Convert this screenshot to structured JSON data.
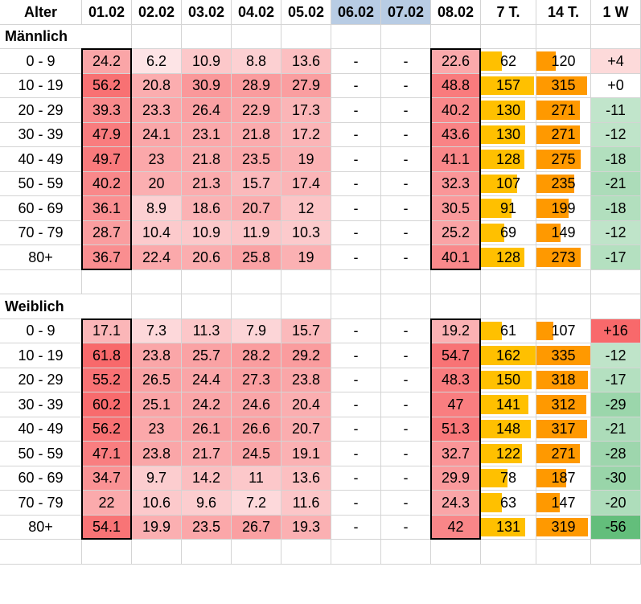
{
  "headers": [
    "Alter",
    "01.02",
    "02.02",
    "03.02",
    "04.02",
    "05.02",
    "06.02",
    "07.02",
    "08.02",
    "7 T.",
    "14 T.",
    "1 W"
  ],
  "weekend_headers": [
    "06.02",
    "07.02"
  ],
  "male": {
    "title": "Männlich",
    "rows": [
      {
        "age": "0 - 9",
        "days": [
          "24.2",
          "6.2",
          "10.9",
          "8.8",
          "13.6",
          "-",
          "-",
          "22.6"
        ],
        "t7": "62",
        "t14": "120",
        "w1": "+4"
      },
      {
        "age": "10 - 19",
        "days": [
          "56.2",
          "20.8",
          "30.9",
          "28.9",
          "27.9",
          "-",
          "-",
          "48.8"
        ],
        "t7": "157",
        "t14": "315",
        "w1": "+0"
      },
      {
        "age": "20 - 29",
        "days": [
          "39.3",
          "23.3",
          "26.4",
          "22.9",
          "17.3",
          "-",
          "-",
          "40.2"
        ],
        "t7": "130",
        "t14": "271",
        "w1": "-11"
      },
      {
        "age": "30 - 39",
        "days": [
          "47.9",
          "24.1",
          "23.1",
          "21.8",
          "17.2",
          "-",
          "-",
          "43.6"
        ],
        "t7": "130",
        "t14": "271",
        "w1": "-12"
      },
      {
        "age": "40 - 49",
        "days": [
          "49.7",
          "23",
          "21.8",
          "23.5",
          "19",
          "-",
          "-",
          "41.1"
        ],
        "t7": "128",
        "t14": "275",
        "w1": "-18"
      },
      {
        "age": "50 - 59",
        "days": [
          "40.2",
          "20",
          "21.3",
          "15.7",
          "17.4",
          "-",
          "-",
          "32.3"
        ],
        "t7": "107",
        "t14": "235",
        "w1": "-21"
      },
      {
        "age": "60 - 69",
        "days": [
          "36.1",
          "8.9",
          "18.6",
          "20.7",
          "12",
          "-",
          "-",
          "30.5"
        ],
        "t7": "91",
        "t14": "199",
        "w1": "-18"
      },
      {
        "age": "70 - 79",
        "days": [
          "28.7",
          "10.4",
          "10.9",
          "11.9",
          "10.3",
          "-",
          "-",
          "25.2"
        ],
        "t7": "69",
        "t14": "149",
        "w1": "-12"
      },
      {
        "age": "80+",
        "days": [
          "36.7",
          "22.4",
          "20.6",
          "25.8",
          "19",
          "-",
          "-",
          "40.1"
        ],
        "t7": "128",
        "t14": "273",
        "w1": "-17"
      }
    ]
  },
  "female": {
    "title": "Weiblich",
    "rows": [
      {
        "age": "0 - 9",
        "days": [
          "17.1",
          "7.3",
          "11.3",
          "7.9",
          "15.7",
          "-",
          "-",
          "19.2"
        ],
        "t7": "61",
        "t14": "107",
        "w1": "+16"
      },
      {
        "age": "10 - 19",
        "days": [
          "61.8",
          "23.8",
          "25.7",
          "28.2",
          "29.2",
          "-",
          "-",
          "54.7"
        ],
        "t7": "162",
        "t14": "335",
        "w1": "-12"
      },
      {
        "age": "20 - 29",
        "days": [
          "55.2",
          "26.5",
          "24.4",
          "27.3",
          "23.8",
          "-",
          "-",
          "48.3"
        ],
        "t7": "150",
        "t14": "318",
        "w1": "-17"
      },
      {
        "age": "30 - 39",
        "days": [
          "60.2",
          "25.1",
          "24.2",
          "24.6",
          "20.4",
          "-",
          "-",
          "47"
        ],
        "t7": "141",
        "t14": "312",
        "w1": "-29"
      },
      {
        "age": "40 - 49",
        "days": [
          "56.2",
          "23",
          "26.1",
          "26.6",
          "20.7",
          "-",
          "-",
          "51.3"
        ],
        "t7": "148",
        "t14": "317",
        "w1": "-21"
      },
      {
        "age": "50 - 59",
        "days": [
          "47.1",
          "23.8",
          "21.7",
          "24.5",
          "19.1",
          "-",
          "-",
          "32.7"
        ],
        "t7": "122",
        "t14": "271",
        "w1": "-28"
      },
      {
        "age": "60 - 69",
        "days": [
          "34.7",
          "9.7",
          "14.2",
          "11",
          "13.6",
          "-",
          "-",
          "29.9"
        ],
        "t7": "78",
        "t14": "187",
        "w1": "-30"
      },
      {
        "age": "70 - 79",
        "days": [
          "22",
          "10.6",
          "9.6",
          "7.2",
          "11.6",
          "-",
          "-",
          "24.3"
        ],
        "t7": "63",
        "t14": "147",
        "w1": "-20"
      },
      {
        "age": "80+",
        "days": [
          "54.1",
          "19.9",
          "23.5",
          "26.7",
          "19.3",
          "-",
          "-",
          "42"
        ],
        "t7": "131",
        "t14": "319",
        "w1": "-56"
      }
    ]
  },
  "colors": {
    "heat_low": "#fde4e6",
    "heat_high": "#f8696b",
    "bar_7t": "#ffc000",
    "bar_14t": "#ff9900",
    "w1_positive": "#f8696b",
    "w1_negative": "#63be7b",
    "weekend_header": "#b8cce4"
  }
}
